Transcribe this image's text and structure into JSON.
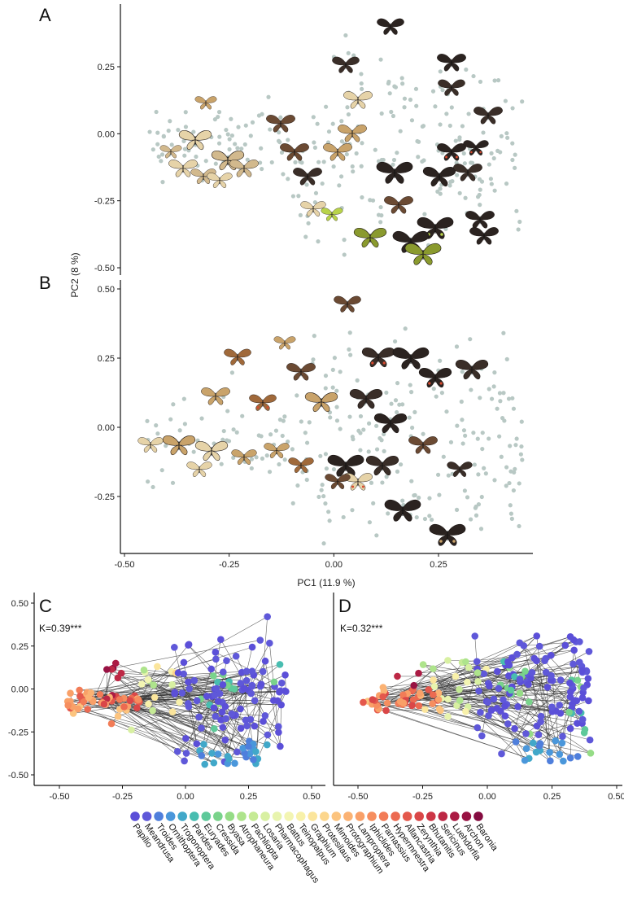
{
  "chart_data": [
    {
      "panel": "A",
      "type": "scatter",
      "xlabel": "",
      "ylabel": "PC2 (8 %)",
      "xlim": [
        -0.52,
        0.49
      ],
      "ylim": [
        -0.52,
        0.45
      ],
      "yticks": [
        "0.25",
        "0.00",
        "-0.25",
        "-0.50"
      ],
      "ytick_values": [
        0.25,
        0.0,
        -0.25,
        -0.5
      ],
      "point_color": "#b8c8c4",
      "butterfly_colors": [
        "#2b2320",
        "#3a2e28",
        "#6b4a33",
        "#c9a36a",
        "#e6d3a8",
        "#d2b98d",
        "#8a9a2e",
        "#b8d34a",
        "#d94a2f"
      ],
      "icon": "butterfly-specimen-icon"
    },
    {
      "panel": "B",
      "type": "scatter",
      "xlabel": "PC1 (11.9 %)",
      "ylabel": "",
      "xlim": [
        -0.52,
        0.49
      ],
      "ylim": [
        -0.47,
        0.55
      ],
      "xticks": [
        "-0.50",
        "-0.25",
        "0.00",
        "0.25"
      ],
      "xtick_values": [
        -0.5,
        -0.25,
        0.0,
        0.25
      ],
      "yticks": [
        "0.50",
        "0.25",
        "0.00",
        "-0.25"
      ],
      "ytick_values": [
        0.5,
        0.25,
        0.0,
        -0.25
      ],
      "point_color": "#b8c8c4",
      "butterfly_colors": [
        "#2b2320",
        "#3a2e28",
        "#6b4a33",
        "#a0693a",
        "#c9a36a",
        "#e6d3a8",
        "#d94a2f"
      ],
      "icon": "butterfly-specimen-icon"
    },
    {
      "panel": "C",
      "type": "scatter",
      "annotation": "K=0.39***",
      "xlim": [
        -0.58,
        0.52
      ],
      "ylim": [
        -0.54,
        0.55
      ],
      "xticks": [
        "-0.50",
        "-0.25",
        "0.00",
        "0.25",
        "0.50"
      ],
      "xtick_values": [
        -0.5,
        -0.25,
        0.0,
        0.25,
        0.5
      ],
      "yticks": [
        "0.50",
        "0.25",
        "0.00",
        "-0.25",
        "-0.50"
      ],
      "ytick_values": [
        0.5,
        0.25,
        0.0,
        -0.25,
        -0.5
      ],
      "phylogeny_edges": true
    },
    {
      "panel": "D",
      "type": "scatter",
      "annotation": "K=0.32***",
      "xlim": [
        -0.58,
        0.52
      ],
      "ylim": [
        -0.54,
        0.55
      ],
      "xticks": [
        "-0.50",
        "-0.25",
        "0.00",
        "0.25",
        "0.50"
      ],
      "xtick_values": [
        -0.5,
        -0.25,
        0.0,
        0.25,
        0.5
      ],
      "phylogeny_edges": true
    }
  ],
  "panels": {
    "a": {
      "letter": "A",
      "ylabel": "PC2 (8 %)",
      "ticks_y": [
        "0.25",
        "0.00",
        "-0.25",
        "-0.50"
      ]
    },
    "b": {
      "letter": "B",
      "xlabel": "PC1 (11.9 %)",
      "ticks_y": [
        "0.50",
        "0.25",
        "0.00",
        "-0.25"
      ],
      "ticks_x": [
        "-0.50",
        "-0.25",
        "0.00",
        "0.25"
      ]
    },
    "c": {
      "letter": "C",
      "kstat": "K=0.39***",
      "ticks_y": [
        "0.50",
        "0.25",
        "0.00",
        "-0.25",
        "-0.50"
      ],
      "ticks_x": [
        "-0.50",
        "-0.25",
        "0.00",
        "0.25",
        "0.50"
      ]
    },
    "d": {
      "letter": "D",
      "kstat": "K=0.32***",
      "ticks_x": [
        "-0.50",
        "-0.25",
        "0.00",
        "0.25",
        "0.50"
      ]
    }
  },
  "legend": {
    "genera": [
      {
        "name": "Papilio",
        "color": "#5b4fd8"
      },
      {
        "name": "Meandrusa",
        "color": "#5f58d9"
      },
      {
        "name": "Troides",
        "color": "#4f7fdc"
      },
      {
        "name": "Ornithoptera",
        "color": "#4a97db"
      },
      {
        "name": "Trogonoptera",
        "color": "#41a8c9"
      },
      {
        "name": "Parides",
        "color": "#48bdb0"
      },
      {
        "name": "Euryades",
        "color": "#5ec99a"
      },
      {
        "name": "Cressida",
        "color": "#79d38b"
      },
      {
        "name": "Byasa",
        "color": "#95dc86"
      },
      {
        "name": "Atrophaneura",
        "color": "#aee48c"
      },
      {
        "name": "Pachliopta",
        "color": "#c5ea95"
      },
      {
        "name": "Losaria",
        "color": "#d8f0a2"
      },
      {
        "name": "Pharmacophagus",
        "color": "#e8f4ae"
      },
      {
        "name": "Battus",
        "color": "#f3f5b2"
      },
      {
        "name": "Teinopalpus",
        "color": "#f8f1aa"
      },
      {
        "name": "Graphium",
        "color": "#fbe59c"
      },
      {
        "name": "Protesilaus",
        "color": "#fcd68d"
      },
      {
        "name": "Mimoides",
        "color": "#fcc47f"
      },
      {
        "name": "Protographium",
        "color": "#fbb273"
      },
      {
        "name": "Lamproptera",
        "color": "#f9a068"
      },
      {
        "name": "Iphiclides",
        "color": "#f68e5f"
      },
      {
        "name": "Parnassius",
        "color": "#f27c57"
      },
      {
        "name": "Hypermnestra",
        "color": "#ec6a51"
      },
      {
        "name": "Allancastria",
        "color": "#e4584c"
      },
      {
        "name": "Zerynthia",
        "color": "#da4748"
      },
      {
        "name": "Bhutanitis",
        "color": "#cd3646"
      },
      {
        "name": "Sericinus",
        "color": "#bd2845"
      },
      {
        "name": "Luehdorfia",
        "color": "#ab1b44"
      },
      {
        "name": "Archon",
        "color": "#981243"
      },
      {
        "name": "Baronia",
        "color": "#850c40"
      }
    ]
  }
}
